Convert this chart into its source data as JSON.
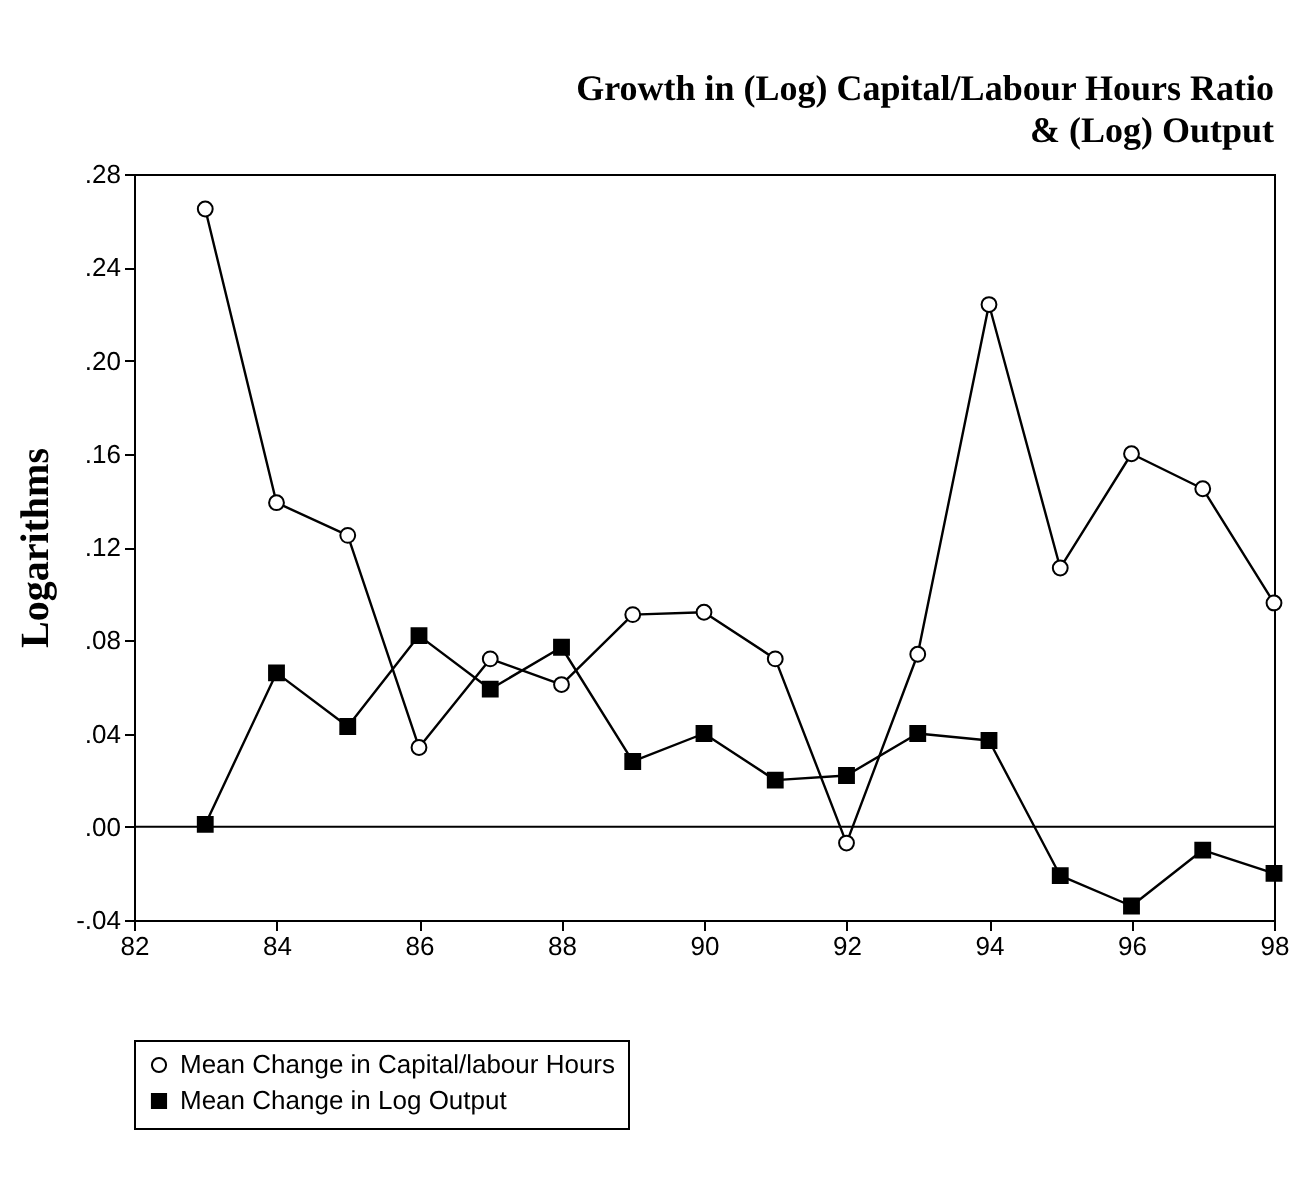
{
  "chart_data": {
    "type": "line",
    "title": "Growth in (Log) Capital/Labour Hours Ratio\n& (Log) Output",
    "ylabel": "Logarithms",
    "x": [
      83,
      84,
      85,
      86,
      87,
      88,
      89,
      90,
      91,
      92,
      93,
      94,
      95,
      96,
      97,
      98
    ],
    "series": [
      {
        "name": "Mean Change in Capital/labour Hours",
        "color": "#000000",
        "marker": "circle",
        "values": [
          0.265,
          0.139,
          0.125,
          0.034,
          0.072,
          0.061,
          0.091,
          0.092,
          0.072,
          -0.007,
          0.074,
          0.224,
          0.111,
          0.16,
          0.145,
          0.096
        ]
      },
      {
        "name": "Mean Change in Log Output",
        "color": "#000000",
        "marker": "square",
        "values": [
          0.001,
          0.066,
          0.043,
          0.082,
          0.059,
          0.077,
          0.028,
          0.04,
          0.02,
          0.022,
          0.04,
          0.037,
          -0.021,
          -0.034,
          -0.01,
          -0.02
        ]
      }
    ],
    "xlim": [
      82,
      98
    ],
    "xticks": [
      82,
      84,
      86,
      88,
      90,
      92,
      94,
      96,
      98
    ],
    "ylim": [
      -0.04,
      0.28
    ],
    "yticks": [
      {
        "value": -0.04,
        "label": "-.04"
      },
      {
        "value": 0,
        "label": ".00"
      },
      {
        "value": 0.04,
        "label": ".04"
      },
      {
        "value": 0.08,
        "label": ".08"
      },
      {
        "value": 0.12,
        "label": ".12"
      },
      {
        "value": 0.16,
        "label": ".16"
      },
      {
        "value": 0.2,
        "label": ".20"
      },
      {
        "value": 0.24,
        "label": ".24"
      },
      {
        "value": 0.28,
        "label": ".28"
      }
    ],
    "ref_lines": [
      {
        "axis": "y",
        "value": 0,
        "color": "#000000"
      }
    ],
    "legend": "bottom",
    "grid": false,
    "line_style": "solid"
  }
}
